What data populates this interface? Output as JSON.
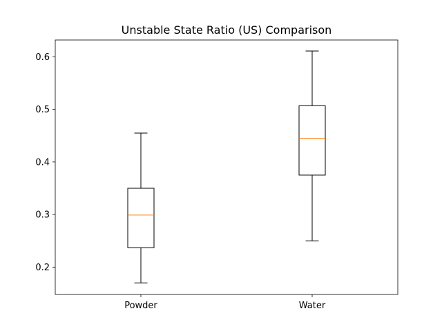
{
  "chart_data": {
    "type": "boxplot",
    "title": "Unstable State Ratio (US) Comparison",
    "xlabel": "",
    "ylabel": "",
    "categories": [
      "Powder",
      "Water"
    ],
    "boxes": [
      {
        "category": "Powder",
        "whisker_low": 0.17,
        "q1": 0.237,
        "median": 0.299,
        "q3": 0.35,
        "whisker_high": 0.455
      },
      {
        "category": "Water",
        "whisker_low": 0.25,
        "q1": 0.375,
        "median": 0.445,
        "q3": 0.507,
        "whisker_high": 0.611
      }
    ],
    "ylim": [
      0.148,
      0.632
    ],
    "yticks": [
      0.2,
      0.3,
      0.4,
      0.5,
      0.6
    ],
    "ytick_labels": [
      "0.2",
      "0.3",
      "0.4",
      "0.5",
      "0.6"
    ],
    "grid": false,
    "colors": {
      "box_edge": "#000000",
      "median": "#ff7f0e",
      "axes": "#000000",
      "background": "#ffffff"
    }
  }
}
